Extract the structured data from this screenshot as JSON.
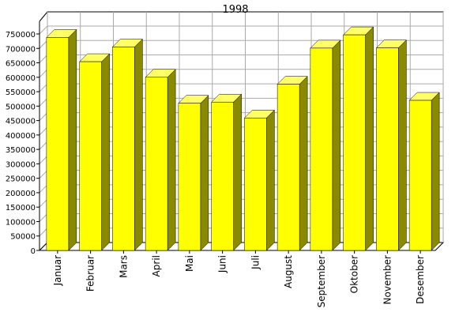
{
  "chart_data": {
    "type": "bar",
    "title": "1998",
    "categories": [
      "Januar",
      "Februar",
      "Mars",
      "April",
      "Mai",
      "Juni",
      "Juli",
      "August",
      "September",
      "Oktober",
      "November",
      "Desember"
    ],
    "series": [
      {
        "values": [
          738000,
          654000,
          705000,
          600000,
          510000,
          514000,
          459000,
          576000,
          701000,
          747000,
          702000,
          520000
        ]
      }
    ],
    "y_ticks": [
      "0",
      "50000",
      "100000",
      "150000",
      "200000",
      "250000",
      "300000",
      "350000",
      "400000",
      "450000",
      "500000",
      "550000",
      "600000",
      "650000",
      "700000",
      "750000"
    ],
    "ylim": [
      0,
      750000
    ],
    "grid": true,
    "bar_style": "3d",
    "colors": {
      "front": "#ffff00",
      "top": "#ffff66",
      "side": "#8a8a00",
      "grid": "#aaaaaa",
      "wall": "#ffffff"
    }
  }
}
